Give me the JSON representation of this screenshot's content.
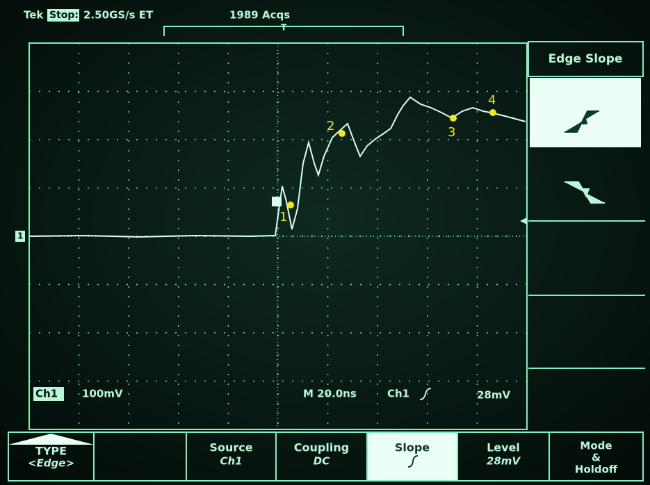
{
  "header": {
    "brand": "Tek",
    "state": "Stop:",
    "sample_rate": "2.50GS/s ET",
    "acquisitions": "1989 Acqs",
    "trigger_marker": "T"
  },
  "side_menu": {
    "title": "Edge Slope"
  },
  "readout": {
    "channel_marker": "1",
    "channel": "Ch1",
    "scale": "100mV",
    "timebase": "M 20.0ns",
    "trigger_source": "Ch1",
    "trigger_level": "28mV"
  },
  "markers": [
    "1",
    "2",
    "3",
    "4"
  ],
  "bottom_menu": [
    {
      "label": "TYPE",
      "value": "<Edge>"
    },
    {
      "label": "Source",
      "value": "Ch1"
    },
    {
      "label": "Coupling",
      "value": "DC"
    },
    {
      "label": "Slope"
    },
    {
      "label": "Level",
      "value": "28mV"
    },
    {
      "lines": [
        "Mode",
        "&",
        "Holdoff"
      ]
    }
  ]
}
